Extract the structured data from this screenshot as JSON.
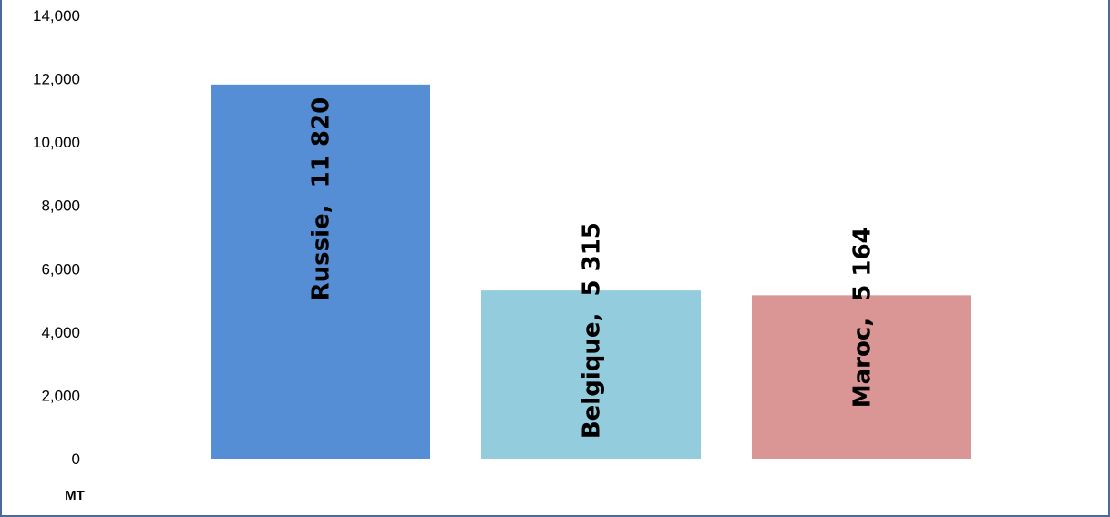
{
  "chart_data": {
    "type": "bar",
    "categories": [
      "Russie",
      "Belgique",
      "Maroc"
    ],
    "values": [
      11820,
      5315,
      5164
    ],
    "data_labels": [
      "Russie,  11 820",
      "Belgique,  5 315",
      "Maroc,  5 164"
    ],
    "colors": [
      "#558ed5",
      "#93cddd",
      "#d99694"
    ],
    "title": "",
    "xlabel": "",
    "ylabel": "",
    "unit": "MT",
    "ylim": [
      0,
      14000
    ],
    "yticks": [
      0,
      2000,
      4000,
      6000,
      8000,
      10000,
      12000,
      14000
    ],
    "ytick_labels": [
      "0",
      "2,000",
      "4,000",
      "6,000",
      "8,000",
      "10,000",
      "12,000",
      "14,000"
    ],
    "grid": false,
    "legend": "none"
  }
}
